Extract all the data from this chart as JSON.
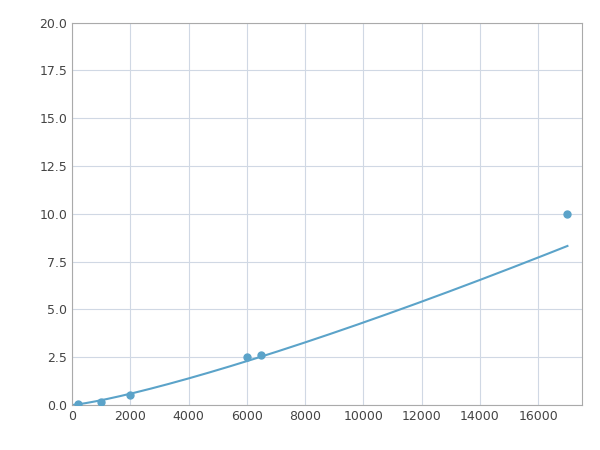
{
  "x_points": [
    200,
    1000,
    2000,
    6000,
    6500,
    17000
  ],
  "y_points": [
    0.05,
    0.15,
    0.5,
    2.5,
    2.6,
    10.0
  ],
  "line_color": "#5ba3c9",
  "marker_color": "#5ba3c9",
  "marker_size": 5,
  "xlim": [
    0,
    17500
  ],
  "ylim": [
    0,
    20
  ],
  "xticks": [
    0,
    2000,
    4000,
    6000,
    8000,
    10000,
    12000,
    14000,
    16000
  ],
  "yticks": [
    0.0,
    2.5,
    5.0,
    7.5,
    10.0,
    12.5,
    15.0,
    17.5,
    20.0
  ],
  "grid_color": "#d0d8e4",
  "background_color": "#ffffff",
  "spine_color": "#aaaaaa",
  "power_a": 2.8e-07,
  "power_b": 1.72
}
